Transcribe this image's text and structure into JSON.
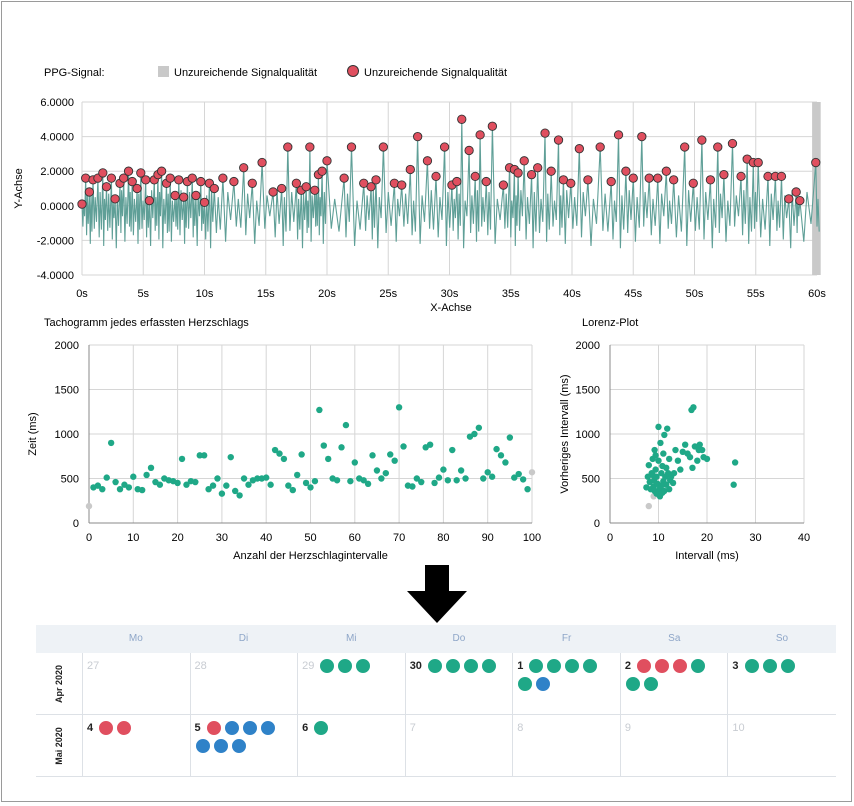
{
  "colors": {
    "teal": "#1fa887",
    "red": "#e04f5f",
    "blue": "#2f82c8",
    "gray": "#c9c9c9",
    "signal": "#5f9f97",
    "grid": "#d6d6d6"
  },
  "chart_data": [
    {
      "type": "line",
      "title": "PPG-Signal:",
      "legend": [
        {
          "label": "Unzureichende Signalqualität",
          "marker": "gray-square"
        },
        {
          "label": "Unzureichende Signalqualität",
          "marker": "red-circle"
        }
      ],
      "xlabel": "X-Achse",
      "ylabel": "Y-Achse",
      "xlim": [
        0,
        60
      ],
      "ylim": [
        -4,
        6
      ],
      "xticks": [
        "0s",
        "5s",
        "10s",
        "15s",
        "20s",
        "25s",
        "30s",
        "35s",
        "40s",
        "45s",
        "50s",
        "55s",
        "60s"
      ],
      "yticks": [
        "6.0000",
        "4.0000",
        "2.0000",
        "0.0000",
        "-2.0000",
        "-4.0000"
      ],
      "gray_band": [
        59.6,
        60.3
      ],
      "peaks": [
        [
          0.0,
          0.1
        ],
        [
          0.3,
          1.6
        ],
        [
          0.6,
          0.8
        ],
        [
          0.9,
          1.5
        ],
        [
          1.3,
          1.6
        ],
        [
          1.7,
          1.9
        ],
        [
          2.0,
          1.1
        ],
        [
          2.4,
          1.6
        ],
        [
          2.7,
          0.4
        ],
        [
          3.1,
          1.3
        ],
        [
          3.4,
          1.6
        ],
        [
          3.8,
          2.0
        ],
        [
          4.1,
          1.4
        ],
        [
          4.5,
          1.0
        ],
        [
          4.8,
          1.9
        ],
        [
          5.2,
          1.5
        ],
        [
          5.5,
          0.3
        ],
        [
          5.9,
          1.5
        ],
        [
          6.2,
          1.8
        ],
        [
          6.5,
          2.0
        ],
        [
          6.9,
          1.3
        ],
        [
          7.2,
          1.6
        ],
        [
          7.6,
          0.6
        ],
        [
          7.9,
          1.5
        ],
        [
          8.3,
          0.5
        ],
        [
          8.6,
          1.4
        ],
        [
          9.0,
          1.6
        ],
        [
          9.3,
          0.6
        ],
        [
          9.7,
          1.4
        ],
        [
          10.0,
          0.2
        ],
        [
          10.4,
          1.3
        ],
        [
          10.8,
          1.0
        ],
        [
          11.5,
          1.6
        ],
        [
          12.4,
          1.4
        ],
        [
          13.2,
          2.2
        ],
        [
          13.9,
          1.3
        ],
        [
          14.7,
          2.5
        ],
        [
          15.6,
          0.8
        ],
        [
          16.3,
          1.0
        ],
        [
          16.8,
          3.4
        ],
        [
          17.5,
          1.3
        ],
        [
          17.9,
          0.9
        ],
        [
          18.3,
          1.1
        ],
        [
          18.6,
          3.4
        ],
        [
          19.0,
          0.9
        ],
        [
          19.3,
          1.8
        ],
        [
          19.6,
          2.0
        ],
        [
          20.0,
          2.6
        ],
        [
          21.4,
          1.6
        ],
        [
          22.0,
          3.4
        ],
        [
          23.0,
          1.3
        ],
        [
          23.6,
          1.1
        ],
        [
          24.0,
          1.5
        ],
        [
          24.6,
          3.4
        ],
        [
          25.5,
          1.3
        ],
        [
          26.1,
          1.2
        ],
        [
          26.8,
          2.1
        ],
        [
          27.4,
          4.0
        ],
        [
          28.2,
          2.6
        ],
        [
          28.9,
          1.7
        ],
        [
          29.6,
          3.4
        ],
        [
          30.2,
          1.2
        ],
        [
          30.6,
          1.4
        ],
        [
          31.0,
          5.0
        ],
        [
          31.6,
          3.2
        ],
        [
          32.1,
          1.7
        ],
        [
          32.5,
          4.1
        ],
        [
          33.0,
          1.4
        ],
        [
          33.5,
          4.6
        ],
        [
          34.4,
          1.2
        ],
        [
          34.9,
          2.2
        ],
        [
          35.3,
          2.1
        ],
        [
          35.6,
          1.9
        ],
        [
          36.1,
          2.6
        ],
        [
          36.7,
          1.8
        ],
        [
          37.2,
          2.2
        ],
        [
          37.8,
          4.2
        ],
        [
          38.3,
          2.0
        ],
        [
          38.9,
          3.8
        ],
        [
          39.3,
          1.5
        ],
        [
          39.9,
          1.3
        ],
        [
          40.6,
          3.3
        ],
        [
          41.3,
          1.5
        ],
        [
          42.3,
          3.4
        ],
        [
          43.2,
          1.4
        ],
        [
          43.8,
          4.1
        ],
        [
          44.4,
          2.0
        ],
        [
          45.0,
          1.6
        ],
        [
          45.7,
          4.0
        ],
        [
          46.3,
          1.6
        ],
        [
          47.0,
          1.6
        ],
        [
          47.7,
          2.0
        ],
        [
          48.3,
          1.5
        ],
        [
          49.2,
          3.4
        ],
        [
          49.9,
          1.3
        ],
        [
          50.6,
          3.8
        ],
        [
          51.3,
          1.5
        ],
        [
          51.9,
          3.4
        ],
        [
          52.4,
          1.8
        ],
        [
          53.1,
          3.6
        ],
        [
          53.8,
          1.7
        ],
        [
          54.3,
          2.7
        ],
        [
          54.8,
          2.5
        ],
        [
          55.2,
          2.5
        ],
        [
          56.0,
          1.7
        ],
        [
          56.6,
          1.7
        ],
        [
          57.1,
          1.7
        ],
        [
          57.7,
          0.4
        ],
        [
          58.3,
          0.8
        ],
        [
          58.6,
          0.3
        ],
        [
          59.9,
          2.5
        ]
      ]
    },
    {
      "type": "scatter",
      "title": "Tachogramm jedes erfassten Herzschlags",
      "xlabel": "Anzahl der Herzschlagintervalle",
      "ylabel": "Zeit (ms)",
      "xlim": [
        0,
        100
      ],
      "ylim": [
        0,
        2000
      ],
      "xticks": [
        "0",
        "10",
        "20",
        "30",
        "40",
        "50",
        "60",
        "70",
        "80",
        "90",
        "100"
      ],
      "yticks": [
        "0",
        "500",
        "1000",
        "1500",
        "2000"
      ],
      "gray_points": [
        [
          0,
          190
        ],
        [
          100,
          570
        ]
      ],
      "points": [
        [
          1,
          400
        ],
        [
          2,
          420
        ],
        [
          3,
          380
        ],
        [
          4,
          510
        ],
        [
          5,
          900
        ],
        [
          6,
          460
        ],
        [
          7,
          380
        ],
        [
          8,
          430
        ],
        [
          9,
          400
        ],
        [
          10,
          520
        ],
        [
          11,
          380
        ],
        [
          12,
          370
        ],
        [
          13,
          540
        ],
        [
          14,
          620
        ],
        [
          15,
          460
        ],
        [
          16,
          430
        ],
        [
          17,
          500
        ],
        [
          18,
          480
        ],
        [
          19,
          470
        ],
        [
          20,
          450
        ],
        [
          21,
          720
        ],
        [
          22,
          430
        ],
        [
          23,
          470
        ],
        [
          24,
          460
        ],
        [
          25,
          760
        ],
        [
          26,
          760
        ],
        [
          27,
          380
        ],
        [
          28,
          420
        ],
        [
          29,
          500
        ],
        [
          30,
          330
        ],
        [
          31,
          420
        ],
        [
          32,
          740
        ],
        [
          33,
          360
        ],
        [
          34,
          310
        ],
        [
          35,
          500
        ],
        [
          36,
          430
        ],
        [
          37,
          480
        ],
        [
          38,
          500
        ],
        [
          39,
          500
        ],
        [
          40,
          510
        ],
        [
          41,
          430
        ],
        [
          42,
          820
        ],
        [
          43,
          780
        ],
        [
          44,
          720
        ],
        [
          45,
          420
        ],
        [
          46,
          370
        ],
        [
          47,
          540
        ],
        [
          48,
          770
        ],
        [
          49,
          450
        ],
        [
          50,
          400
        ],
        [
          51,
          470
        ],
        [
          52,
          1270
        ],
        [
          53,
          870
        ],
        [
          54,
          720
        ],
        [
          55,
          500
        ],
        [
          56,
          480
        ],
        [
          57,
          850
        ],
        [
          58,
          1100
        ],
        [
          59,
          470
        ],
        [
          60,
          680
        ],
        [
          61,
          500
        ],
        [
          62,
          480
        ],
        [
          63,
          440
        ],
        [
          64,
          760
        ],
        [
          65,
          590
        ],
        [
          66,
          500
        ],
        [
          67,
          560
        ],
        [
          68,
          770
        ],
        [
          69,
          700
        ],
        [
          70,
          1300
        ],
        [
          71,
          860
        ],
        [
          72,
          420
        ],
        [
          73,
          410
        ],
        [
          74,
          500
        ],
        [
          75,
          460
        ],
        [
          76,
          850
        ],
        [
          77,
          880
        ],
        [
          78,
          450
        ],
        [
          79,
          510
        ],
        [
          80,
          600
        ],
        [
          81,
          480
        ],
        [
          82,
          820
        ],
        [
          83,
          480
        ],
        [
          84,
          590
        ],
        [
          85,
          500
        ],
        [
          86,
          970
        ],
        [
          87,
          1000
        ],
        [
          88,
          1070
        ],
        [
          89,
          500
        ],
        [
          90,
          570
        ],
        [
          91,
          520
        ],
        [
          92,
          830
        ],
        [
          93,
          760
        ],
        [
          94,
          680
        ],
        [
          95,
          960
        ],
        [
          96,
          510
        ],
        [
          97,
          550
        ],
        [
          98,
          490
        ],
        [
          99,
          380
        ]
      ]
    },
    {
      "type": "scatter",
      "title": "Lorenz-Plot",
      "xlabel": "Intervall (ms)",
      "ylabel": "Vorheriges Intervall (ms)",
      "xlim": [
        0,
        40
      ],
      "ylim": [
        0,
        2000
      ],
      "xticks": [
        "0",
        "10",
        "20",
        "30",
        "40"
      ],
      "yticks": [
        "0",
        "500",
        "1000",
        "1500",
        "2000"
      ],
      "gray_points": [
        [
          8,
          190
        ],
        [
          9,
          300
        ]
      ],
      "points": [
        [
          7.5,
          400
        ],
        [
          7.8,
          520
        ],
        [
          8,
          650
        ],
        [
          8.2,
          460
        ],
        [
          8.4,
          380
        ],
        [
          8.6,
          560
        ],
        [
          8.8,
          720
        ],
        [
          9,
          410
        ],
        [
          9.1,
          480
        ],
        [
          9.2,
          820
        ],
        [
          9.4,
          600
        ],
        [
          9.6,
          520
        ],
        [
          9.8,
          440
        ],
        [
          10,
          700
        ],
        [
          10,
          1080
        ],
        [
          10.2,
          380
        ],
        [
          10.4,
          900
        ],
        [
          10.6,
          560
        ],
        [
          10.8,
          640
        ],
        [
          11,
          780
        ],
        [
          11,
          470
        ],
        [
          11.2,
          990
        ],
        [
          11.4,
          520
        ],
        [
          11.6,
          430
        ],
        [
          11.8,
          1060
        ],
        [
          12,
          560
        ],
        [
          12.2,
          720
        ],
        [
          12.4,
          480
        ],
        [
          12.6,
          520
        ],
        [
          13,
          450
        ],
        [
          13.2,
          560
        ],
        [
          13.5,
          820
        ],
        [
          14,
          700
        ],
        [
          14.5,
          600
        ],
        [
          15,
          800
        ],
        [
          15.5,
          880
        ],
        [
          16,
          780
        ],
        [
          16.5,
          740
        ],
        [
          16.8,
          1270
        ],
        [
          17,
          620
        ],
        [
          17.2,
          1300
        ],
        [
          17.5,
          860
        ],
        [
          18,
          700
        ],
        [
          18.3,
          820
        ],
        [
          18.5,
          880
        ],
        [
          19,
          820
        ],
        [
          19.3,
          740
        ],
        [
          20,
          720
        ],
        [
          25.5,
          430
        ],
        [
          25.8,
          680
        ],
        [
          9.2,
          360
        ],
        [
          9.6,
          330
        ],
        [
          10.3,
          300
        ],
        [
          10.8,
          340
        ],
        [
          11.2,
          360
        ],
        [
          12.2,
          380
        ],
        [
          8.8,
          540
        ],
        [
          9.4,
          760
        ],
        [
          10.6,
          420
        ],
        [
          11.6,
          620
        ]
      ]
    }
  ],
  "calendar": {
    "weekdays": [
      "Mo",
      "Di",
      "Mi",
      "Do",
      "Fr",
      "Sa",
      "So"
    ],
    "weeks": [
      {
        "label": "Apr 2020",
        "days": [
          {
            "day": "27",
            "out": true,
            "badges": []
          },
          {
            "day": "28",
            "out": true,
            "badges": []
          },
          {
            "day": "29",
            "out": true,
            "badges": [
              "g",
              "g",
              "g"
            ]
          },
          {
            "day": "30",
            "out": false,
            "badges": [
              "g",
              "g",
              "g",
              "g"
            ]
          },
          {
            "day": "1",
            "out": false,
            "badges": [
              "g",
              "g",
              "g",
              "g",
              "g",
              "u"
            ]
          },
          {
            "day": "2",
            "out": false,
            "badges": [
              "r",
              "r",
              "r",
              "g",
              "g",
              "g"
            ]
          },
          {
            "day": "3",
            "out": false,
            "badges": [
              "g",
              "g",
              "g"
            ]
          }
        ]
      },
      {
        "label": "Mai 2020",
        "days": [
          {
            "day": "4",
            "out": false,
            "badges": [
              "r",
              "r"
            ]
          },
          {
            "day": "5",
            "out": false,
            "badges": [
              "r",
              "u",
              "u",
              "u",
              "u",
              "u",
              "u"
            ]
          },
          {
            "day": "6",
            "out": false,
            "badges": [
              "g"
            ]
          },
          {
            "day": "7",
            "out": true,
            "badges": []
          },
          {
            "day": "8",
            "out": true,
            "badges": []
          },
          {
            "day": "9",
            "out": true,
            "badges": []
          },
          {
            "day": "10",
            "out": true,
            "badges": []
          }
        ]
      }
    ]
  }
}
